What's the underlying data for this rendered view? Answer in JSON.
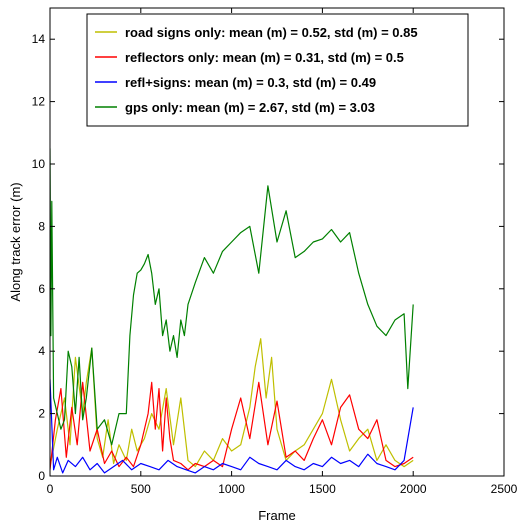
{
  "chart_data": {
    "type": "line",
    "xlabel": "Frame",
    "ylabel": "Along track error (m)",
    "xlim": [
      0,
      2500
    ],
    "ylim": [
      0,
      15
    ],
    "x_ticks": [
      0,
      500,
      1000,
      1500,
      2000,
      2500
    ],
    "y_ticks": [
      0,
      2,
      4,
      6,
      8,
      10,
      12,
      14
    ],
    "grid": false,
    "legend_position": "top-center",
    "series": [
      {
        "name": "road signs only: mean (m) = 0.52,  std (m) = 0.85",
        "color": "#bfbf00",
        "x": [
          0,
          40,
          80,
          110,
          140,
          180,
          200,
          230,
          260,
          290,
          320,
          350,
          380,
          420,
          450,
          480,
          520,
          560,
          600,
          640,
          680,
          720,
          760,
          800,
          850,
          900,
          950,
          1000,
          1050,
          1100,
          1130,
          1160,
          1190,
          1220,
          1250,
          1300,
          1350,
          1400,
          1450,
          1500,
          1550,
          1600,
          1650,
          1700,
          1750,
          1800,
          1850,
          1900,
          1950,
          2000
        ],
        "y": [
          0.3,
          1.5,
          2.5,
          1.0,
          3.8,
          2.0,
          3.0,
          4.1,
          1.2,
          0.6,
          1.8,
          0.4,
          1.0,
          0.5,
          1.5,
          0.8,
          1.2,
          2.0,
          1.5,
          2.8,
          1.0,
          2.5,
          0.5,
          0.3,
          0.8,
          0.5,
          1.2,
          0.8,
          1.0,
          2.2,
          3.5,
          4.4,
          2.5,
          3.8,
          1.5,
          0.5,
          0.8,
          1.0,
          1.5,
          2.0,
          3.1,
          1.8,
          0.8,
          1.2,
          1.5,
          0.5,
          1.0,
          0.5,
          0.3,
          0.5
        ]
      },
      {
        "name": "reflectors only: mean (m) = 0.31,  std (m) = 0.5",
        "color": "#ff0000",
        "x": [
          0,
          30,
          60,
          90,
          120,
          150,
          180,
          220,
          260,
          300,
          340,
          380,
          420,
          460,
          500,
          540,
          560,
          580,
          600,
          620,
          640,
          660,
          680,
          720,
          760,
          800,
          850,
          900,
          950,
          1000,
          1050,
          1100,
          1150,
          1200,
          1250,
          1300,
          1350,
          1400,
          1450,
          1500,
          1550,
          1600,
          1650,
          1700,
          1750,
          1800,
          1850,
          1900,
          1950,
          2000
        ],
        "y": [
          0.2,
          1.8,
          2.8,
          0.6,
          2.2,
          1.0,
          3.0,
          0.8,
          1.5,
          0.4,
          0.8,
          0.3,
          0.6,
          0.3,
          1.0,
          2.0,
          3.0,
          1.5,
          2.8,
          0.8,
          2.5,
          1.2,
          0.5,
          0.4,
          0.2,
          0.4,
          0.3,
          0.5,
          0.3,
          1.5,
          2.5,
          1.2,
          3.0,
          1.0,
          2.4,
          0.6,
          0.8,
          0.5,
          1.2,
          1.8,
          1.0,
          2.2,
          2.6,
          1.5,
          1.2,
          1.8,
          0.5,
          0.3,
          0.4,
          0.6
        ]
      },
      {
        "name": "refl+signs: mean (m) = 0.3,  std (m) = 0.49",
        "color": "#0000ff",
        "x": [
          0,
          20,
          40,
          70,
          100,
          140,
          180,
          220,
          260,
          300,
          350,
          400,
          450,
          500,
          550,
          600,
          650,
          700,
          750,
          800,
          850,
          900,
          950,
          1000,
          1050,
          1100,
          1150,
          1200,
          1250,
          1300,
          1350,
          1400,
          1450,
          1500,
          1550,
          1600,
          1650,
          1700,
          1750,
          1800,
          1850,
          1900,
          1950,
          2000
        ],
        "y": [
          3.1,
          0.2,
          0.6,
          0.1,
          0.5,
          0.3,
          0.6,
          0.2,
          0.4,
          0.1,
          0.3,
          0.5,
          0.2,
          0.4,
          0.3,
          0.2,
          0.5,
          0.3,
          0.2,
          0.1,
          0.3,
          0.2,
          0.4,
          0.3,
          0.2,
          0.6,
          0.4,
          0.3,
          0.2,
          0.5,
          0.3,
          0.2,
          0.4,
          0.3,
          0.6,
          0.4,
          0.5,
          0.3,
          0.7,
          0.4,
          0.3,
          0.2,
          0.5,
          2.2
        ]
      },
      {
        "name": "gps only: mean (m) = 2.67,  std (m) = 3.03",
        "color": "#008000",
        "x": [
          0,
          5,
          10,
          20,
          40,
          60,
          80,
          100,
          120,
          140,
          160,
          180,
          200,
          230,
          260,
          300,
          340,
          380,
          420,
          440,
          460,
          480,
          500,
          520,
          540,
          560,
          580,
          600,
          620,
          640,
          660,
          680,
          700,
          720,
          740,
          760,
          800,
          850,
          900,
          950,
          1000,
          1050,
          1100,
          1150,
          1200,
          1250,
          1300,
          1350,
          1400,
          1450,
          1500,
          1550,
          1600,
          1650,
          1700,
          1750,
          1800,
          1850,
          1900,
          1950,
          1970,
          2000
        ],
        "y": [
          10.5,
          4.5,
          8.8,
          2.5,
          2.0,
          1.5,
          1.8,
          4.0,
          3.5,
          2.0,
          3.8,
          1.8,
          2.5,
          4.1,
          1.5,
          1.8,
          1.0,
          2.0,
          2.0,
          4.5,
          5.8,
          6.5,
          6.6,
          6.8,
          7.1,
          6.5,
          5.5,
          6.0,
          4.5,
          5.0,
          4.0,
          4.5,
          3.8,
          5.0,
          4.5,
          5.5,
          6.2,
          7.0,
          6.5,
          7.2,
          7.5,
          7.8,
          8.0,
          6.5,
          9.3,
          7.5,
          8.5,
          7.0,
          7.2,
          7.5,
          7.6,
          7.9,
          7.5,
          7.8,
          6.5,
          5.5,
          4.8,
          4.5,
          5.0,
          5.2,
          2.8,
          5.5
        ]
      }
    ]
  }
}
